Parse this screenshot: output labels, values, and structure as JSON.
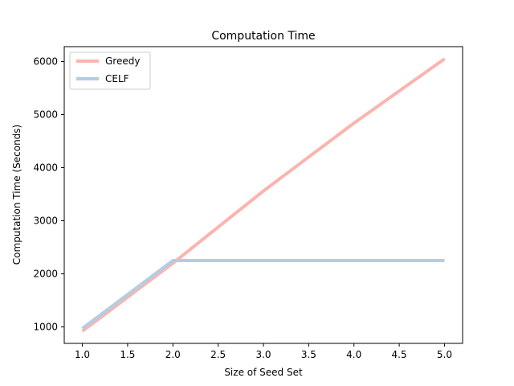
{
  "chart_data": {
    "type": "line",
    "title": "Computation Time",
    "xlabel": "Size of Seed Set",
    "ylabel": "Computation Time (Seconds)",
    "xlim": [
      0.8,
      5.2
    ],
    "ylim": [
      690,
      6280
    ],
    "xticks": [
      1.0,
      1.5,
      2.0,
      2.5,
      3.0,
      3.5,
      4.0,
      4.5,
      5.0
    ],
    "xtick_labels": [
      "1.0",
      "1.5",
      "2.0",
      "2.5",
      "3.0",
      "3.5",
      "4.0",
      "4.5",
      "5.0"
    ],
    "yticks": [
      1000,
      2000,
      3000,
      4000,
      5000,
      6000
    ],
    "ytick_labels": [
      "1000",
      "2000",
      "3000",
      "4000",
      "5000",
      "6000"
    ],
    "grid": false,
    "legend_position": "top-left",
    "series": [
      {
        "name": "Greedy",
        "color": "#fbb4ae",
        "x": [
          1,
          2,
          3,
          4,
          5
        ],
        "y": [
          920,
          2200,
          3560,
          4840,
          6050
        ]
      },
      {
        "name": "CELF",
        "color": "#b3cde3",
        "x": [
          1,
          2,
          3,
          4,
          5
        ],
        "y": [
          970,
          2250,
          2250,
          2250,
          2250
        ]
      }
    ]
  }
}
